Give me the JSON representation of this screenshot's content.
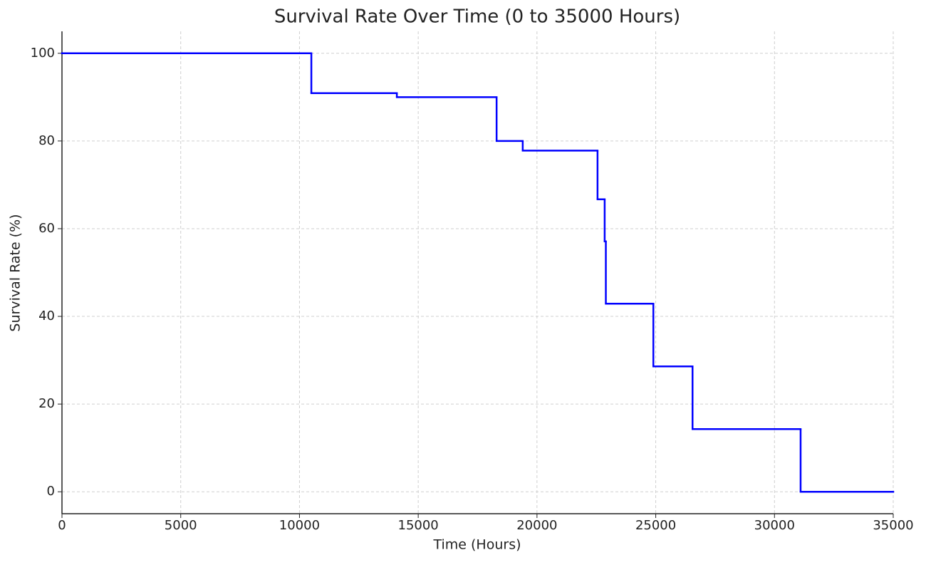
{
  "chart_data": {
    "type": "line",
    "step": "post",
    "title": "Survival Rate Over Time (0 to 35000 Hours)",
    "x_label": "Time (Hours)",
    "y_label": "Survival Rate (%)",
    "x": [
      0,
      10500,
      14100,
      18300,
      19400,
      22550,
      22850,
      22900,
      24900,
      26550,
      31100
    ],
    "series": [
      {
        "name": "Survival Rate",
        "color": "#0000ff",
        "values": [
          100,
          90.9,
          90,
          80,
          77.8,
          66.7,
          57.1,
          42.9,
          28.6,
          14.3,
          0
        ]
      }
    ],
    "xlim": [
      0,
      35000
    ],
    "xticks": [
      0,
      5000,
      10000,
      15000,
      20000,
      25000,
      30000,
      35000
    ],
    "ylim": [
      -5,
      105
    ],
    "yticks": [
      0,
      20,
      40,
      60,
      80,
      100
    ],
    "grid": true
  }
}
